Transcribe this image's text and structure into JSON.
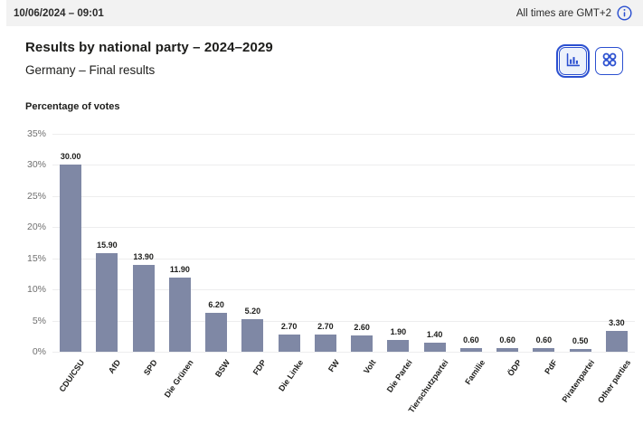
{
  "header": {
    "datetime": "10/06/2024 – 09:01",
    "timezone_note": "All times are GMT+2",
    "info_icon": "info-circle-icon"
  },
  "title": "Results by national party – 2024–2029",
  "subtitle": "Germany – Final results",
  "view_toggle": {
    "bar_chart_button": "bar-chart-view",
    "grid_button": "grid-view",
    "selected": "bar-chart-view"
  },
  "colors": {
    "accent_blue": "#2b50d0",
    "bar": "#7f88a5",
    "header_bg": "#f2f2f2",
    "gridline": "#ededee",
    "tick_text": "#6f6f6f"
  },
  "chart_data": {
    "type": "bar",
    "title": "Results by national party – 2024–2029",
    "ylabel": "Percentage of votes",
    "xlabel": "",
    "ylim": [
      0,
      35
    ],
    "yticks": [
      0,
      5,
      10,
      15,
      20,
      25,
      30,
      35
    ],
    "ytick_labels": [
      "0%",
      "5%",
      "10%",
      "15%",
      "20%",
      "25%",
      "30%",
      "35%"
    ],
    "grid": true,
    "categories": [
      "CDU/CSU",
      "AfD",
      "SPD",
      "Die Grünen",
      "BSW",
      "FDP",
      "Die Linke",
      "FW",
      "Volt",
      "Die Partei",
      "Tierschutzpartei",
      "Familie",
      "ÖDP",
      "PdF",
      "Piratenpartei",
      "Other parties"
    ],
    "values": [
      30.0,
      15.9,
      13.9,
      11.9,
      6.2,
      5.2,
      2.7,
      2.7,
      2.6,
      1.9,
      1.4,
      0.6,
      0.6,
      0.6,
      0.5,
      3.3
    ],
    "value_labels": [
      "30.00",
      "15.90",
      "13.90",
      "11.90",
      "6.20",
      "5.20",
      "2.70",
      "2.70",
      "2.60",
      "1.90",
      "1.40",
      "0.60",
      "0.60",
      "0.60",
      "0.50",
      "3.30"
    ]
  }
}
